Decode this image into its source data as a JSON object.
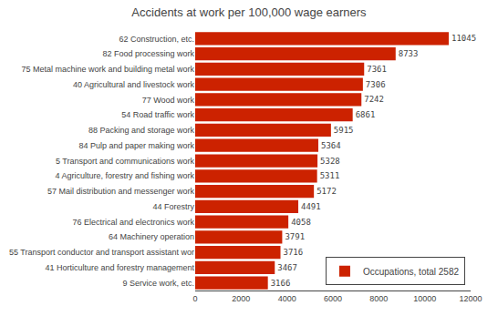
{
  "chart_data": {
    "type": "bar",
    "orientation": "horizontal",
    "title": "Accidents at work per 100,000 wage earners",
    "categories": [
      "9 Service work, etc.",
      "41 Horticulture and forestry management",
      "55 Transport conductor and transport assistant wor",
      "64 Machinery operation",
      "76 Electrical and electronics work",
      "44 Forestry",
      "57 Mail distribution and messenger work",
      "4 Agriculture, forestry and fishing work",
      "5 Transport and communications work",
      "84 Pulp and paper making work",
      "88 Packing and storage work",
      "54 Road traffic work",
      "77 Wood work",
      "40 Agricultural and livestock work",
      "75 Metal machine work and building metal work",
      "82 Food processing work",
      "62 Construction, etc."
    ],
    "series": [
      {
        "name": "Occupations, total 2582",
        "color": "#cc2200",
        "values": [
          3166,
          3467,
          3716,
          3791,
          4058,
          4491,
          5172,
          5311,
          5328,
          5364,
          5915,
          6861,
          7242,
          7306,
          7361,
          8733,
          11045
        ]
      }
    ],
    "xlim": [
      0,
      12000
    ],
    "xticks": [
      0,
      2000,
      4000,
      6000,
      8000,
      10000,
      12000
    ],
    "data_labels": true,
    "grid": false,
    "legend": "lower right"
  }
}
